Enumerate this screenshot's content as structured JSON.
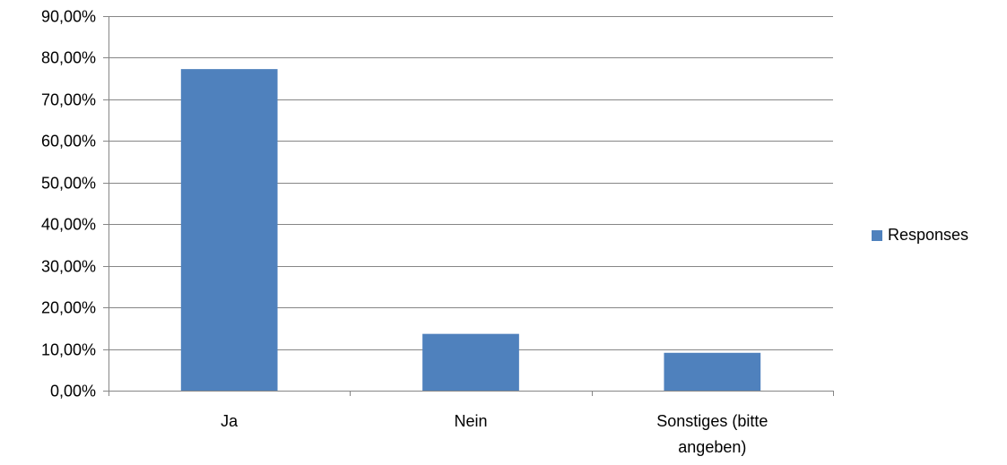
{
  "chart_data": {
    "type": "bar",
    "categories": [
      "Ja",
      "Nein",
      "Sonstiges (bitte angeben)"
    ],
    "category_lines": [
      [
        "Ja"
      ],
      [
        "Nein"
      ],
      [
        "Sonstiges (bitte",
        "angeben)"
      ]
    ],
    "series": [
      {
        "name": "Responses",
        "values": [
          77.27,
          13.64,
          9.09
        ],
        "color": "#4f81bd"
      }
    ],
    "value_format": "percent_comma_2",
    "y_ticks": [
      "0,00%",
      "10,00%",
      "20,00%",
      "30,00%",
      "40,00%",
      "50,00%",
      "60,00%",
      "70,00%",
      "80,00%",
      "90,00%"
    ],
    "ylim": [
      0,
      90
    ],
    "y_step": 10,
    "title": "",
    "xlabel": "",
    "ylabel": "",
    "grid": true,
    "gridline_color": "#868686",
    "legend_position": "right"
  }
}
